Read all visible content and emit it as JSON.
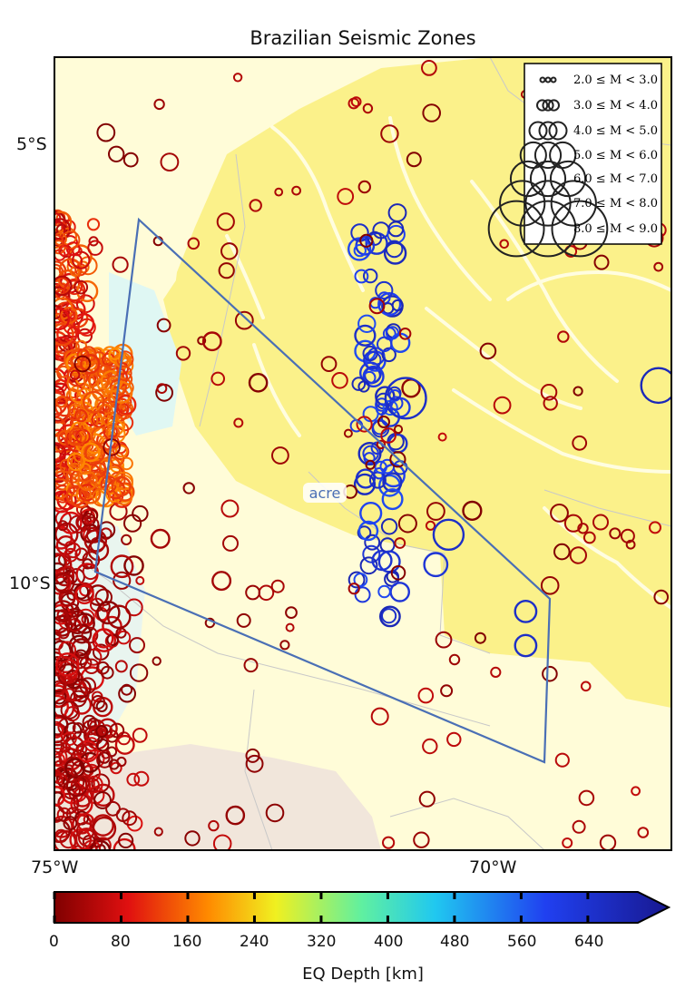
{
  "title": "Brazilian Seismic Zones",
  "lat_labels": [
    "5°S",
    "10°S"
  ],
  "lon_labels": [
    "75°W",
    "70°W"
  ],
  "zone_label": "acre",
  "legend": {
    "entries": [
      "2.0 ≤ M < 3.0",
      "3.0 ≤ M < 4.0",
      "4.0 ≤ M < 5.0",
      "5.0 ≤ M < 6.0",
      "6.0 ≤ M < 7.0",
      "7.0 ≤ M < 8.0",
      "8.0 ≤ M < 9.0"
    ]
  },
  "colorbar": {
    "title": "EQ Depth [km]",
    "ticks": [
      "0",
      "80",
      "160",
      "240",
      "320",
      "400",
      "480",
      "560",
      "640"
    ]
  },
  "colors": {
    "land_yellow": "#fbf18a",
    "land_pale": "#fffcd8",
    "zone_outline": "#4a6fb5",
    "shallow": "#b01010",
    "mid": "#ff8a1a",
    "deep": "#2323d8"
  },
  "map_extent": {
    "lon": [
      -75,
      -67.8
    ],
    "lat": [
      -4.1,
      -13.4
    ]
  },
  "chart_data": {
    "type": "scatter",
    "xlabel": "",
    "ylabel": "",
    "colorbar_label": "EQ Depth [km]",
    "colorbar_range": [
      0,
      700
    ],
    "magnitude_bins": [
      [
        2.0,
        3.0
      ],
      [
        3.0,
        4.0
      ],
      [
        4.0,
        5.0
      ],
      [
        5.0,
        6.0
      ],
      [
        6.0,
        7.0
      ],
      [
        7.0,
        8.0
      ],
      [
        8.0,
        9.0
      ]
    ],
    "notable_events": [
      {
        "lon": -70.9,
        "lat": -8.1,
        "depth": 620,
        "mag": 7.1
      },
      {
        "lon": -67.95,
        "lat": -7.95,
        "depth": 640,
        "mag": 6.5
      },
      {
        "lon": -70.4,
        "lat": -9.7,
        "depth": 620,
        "mag": 6.0
      },
      {
        "lon": -70.55,
        "lat": -10.05,
        "depth": 600,
        "mag": 5.2
      },
      {
        "lon": -69.5,
        "lat": -10.6,
        "depth": 620,
        "mag": 5.0
      },
      {
        "lon": -69.5,
        "lat": -11.0,
        "depth": 620,
        "mag": 5.0
      }
    ]
  }
}
